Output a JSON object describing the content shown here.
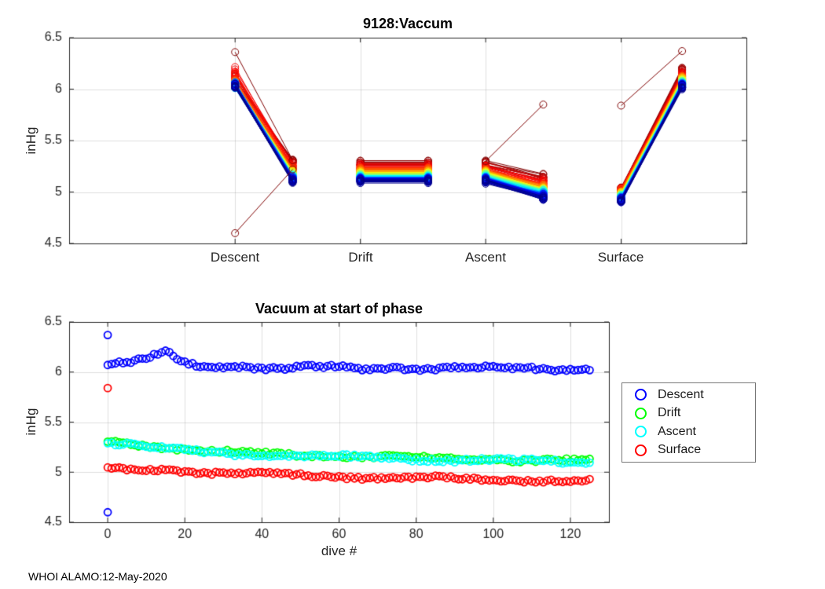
{
  "figure": {
    "footer": "WHOI ALAMO:12-May-2020",
    "background": "#ffffff"
  },
  "chart_data": [
    {
      "type": "line",
      "title": "9128:Vaccum",
      "ylabel": "inHg",
      "ylim": [
        4.5,
        6.5
      ],
      "yticks": [
        4.5,
        5,
        5.5,
        6,
        6.5
      ],
      "grid": true,
      "categories": [
        "Descent",
        "Drift",
        "Ascent",
        "Surface"
      ],
      "x_pair_fractions": [
        [
          0.245,
          0.33
        ],
        [
          0.43,
          0.53
        ],
        [
          0.615,
          0.7
        ],
        [
          0.815,
          0.905
        ]
      ],
      "n_dives": 126,
      "marker": "o",
      "colormap": "jet reversed by dive number (early dives dark red, late dives dark blue)",
      "sample_dives": [
        0,
        5,
        10,
        15,
        20,
        25,
        30,
        35,
        40,
        45,
        50,
        55,
        60,
        65,
        70,
        75,
        80,
        85,
        90,
        95,
        100,
        105,
        110,
        115,
        120,
        125
      ],
      "phase_series": {
        "descent_start": [
          6.08,
          6.09,
          6.13,
          6.2,
          6.09,
          6.06,
          6.05,
          6.06,
          6.04,
          6.03,
          6.05,
          6.04,
          6.05,
          6.03,
          6.04,
          6.05,
          6.04,
          6.03,
          6.05,
          6.04,
          6.05,
          6.03,
          6.04,
          6.03,
          6.04,
          6.03
        ],
        "descent_end": [
          5.31,
          5.29,
          5.27,
          5.25,
          5.23,
          5.21,
          5.2,
          5.19,
          5.18,
          5.18,
          5.17,
          5.17,
          5.16,
          5.16,
          5.15,
          5.15,
          5.14,
          5.14,
          5.13,
          5.13,
          5.13,
          5.12,
          5.12,
          5.12,
          5.11,
          5.11
        ],
        "drift_start": [
          5.3,
          5.28,
          5.26,
          5.24,
          5.22,
          5.21,
          5.2,
          5.19,
          5.18,
          5.17,
          5.17,
          5.16,
          5.16,
          5.15,
          5.15,
          5.14,
          5.14,
          5.13,
          5.13,
          5.13,
          5.12,
          5.12,
          5.12,
          5.11,
          5.11,
          5.1
        ],
        "drift_end": [
          5.3,
          5.28,
          5.26,
          5.24,
          5.22,
          5.21,
          5.2,
          5.19,
          5.18,
          5.17,
          5.17,
          5.16,
          5.16,
          5.15,
          5.15,
          5.14,
          5.14,
          5.13,
          5.13,
          5.13,
          5.12,
          5.12,
          5.12,
          5.11,
          5.11,
          5.1
        ],
        "ascent_start": [
          5.3,
          5.28,
          5.26,
          5.24,
          5.22,
          5.21,
          5.2,
          5.19,
          5.18,
          5.17,
          5.17,
          5.16,
          5.16,
          5.15,
          5.15,
          5.14,
          5.14,
          5.13,
          5.13,
          5.13,
          5.12,
          5.12,
          5.12,
          5.11,
          5.11,
          5.1
        ],
        "ascent_end": [
          5.16,
          5.13,
          5.11,
          5.09,
          5.08,
          5.06,
          5.05,
          5.04,
          5.03,
          5.03,
          5.02,
          5.01,
          5.01,
          5.0,
          5.0,
          4.99,
          4.99,
          4.98,
          4.98,
          4.97,
          4.97,
          4.96,
          4.96,
          4.95,
          4.94,
          4.94
        ],
        "surface_start": [
          5.03,
          5.02,
          5.02,
          5.04,
          5.01,
          5.0,
          4.99,
          4.98,
          4.98,
          4.97,
          4.97,
          4.96,
          4.96,
          4.95,
          4.95,
          4.95,
          4.94,
          4.94,
          4.93,
          4.93,
          4.93,
          4.92,
          4.92,
          4.92,
          4.91,
          4.91
        ],
        "surface_end": [
          6.2,
          6.18,
          6.16,
          6.14,
          6.12,
          6.11,
          6.1,
          6.09,
          6.09,
          6.08,
          6.08,
          6.07,
          6.07,
          6.06,
          6.06,
          6.05,
          6.05,
          6.05,
          6.04,
          6.04,
          6.04,
          6.03,
          6.03,
          6.03,
          6.02,
          6.02
        ]
      },
      "outlier_segments": [
        {
          "phase": "Descent",
          "dive": 0,
          "from": 4.6,
          "to": 5.22
        },
        {
          "phase": "Ascent",
          "dive": 0,
          "from": 5.3,
          "to": 5.85
        },
        {
          "phase": "Surface",
          "dive": 0,
          "from": 5.84,
          "to": 6.37
        },
        {
          "phase": "Descent",
          "dive": 1,
          "from": 6.36,
          "to": 5.31
        }
      ]
    },
    {
      "type": "scatter",
      "title": "Vacuum at start of phase",
      "xlabel": "dive #",
      "ylabel": "inHg",
      "xlim": [
        -10,
        130
      ],
      "ylim": [
        4.5,
        6.5
      ],
      "xticks": [
        0,
        20,
        40,
        60,
        80,
        100,
        120
      ],
      "yticks": [
        4.5,
        5,
        5.5,
        6,
        6.5
      ],
      "grid": true,
      "marker": "o",
      "x_samples": [
        0,
        5,
        10,
        15,
        20,
        25,
        30,
        35,
        40,
        45,
        50,
        55,
        60,
        65,
        70,
        75,
        80,
        85,
        90,
        95,
        100,
        105,
        110,
        115,
        120,
        125
      ],
      "series": [
        {
          "name": "Descent",
          "color": "#0000ff",
          "values": [
            6.08,
            6.09,
            6.13,
            6.2,
            6.09,
            6.06,
            6.05,
            6.06,
            6.04,
            6.03,
            6.05,
            6.04,
            6.05,
            6.03,
            6.04,
            6.05,
            6.04,
            6.03,
            6.05,
            6.04,
            6.05,
            6.03,
            6.04,
            6.03,
            6.04,
            6.03
          ]
        },
        {
          "name": "Drift",
          "color": "#00ff00",
          "values": [
            5.31,
            5.29,
            5.27,
            5.25,
            5.23,
            5.21,
            5.2,
            5.19,
            5.18,
            5.18,
            5.17,
            5.17,
            5.16,
            5.16,
            5.15,
            5.15,
            5.14,
            5.14,
            5.13,
            5.13,
            5.13,
            5.12,
            5.12,
            5.12,
            5.11,
            5.11
          ]
        },
        {
          "name": "Ascent",
          "color": "#00ffff",
          "values": [
            5.3,
            5.28,
            5.26,
            5.23,
            5.22,
            5.2,
            5.19,
            5.18,
            5.17,
            5.17,
            5.16,
            5.16,
            5.15,
            5.15,
            5.14,
            5.14,
            5.13,
            5.13,
            5.12,
            5.12,
            5.12,
            5.11,
            5.11,
            5.11,
            5.1,
            5.1
          ]
        },
        {
          "name": "Surface",
          "color": "#ff0000",
          "values": [
            5.03,
            5.02,
            5.02,
            5.04,
            5.01,
            5.0,
            4.99,
            4.98,
            4.98,
            4.97,
            4.97,
            4.96,
            4.96,
            4.95,
            4.95,
            4.95,
            4.94,
            4.94,
            4.93,
            4.93,
            4.93,
            4.92,
            4.92,
            4.92,
            4.91,
            4.91
          ]
        }
      ],
      "extra_points": [
        {
          "series": "Descent",
          "x": 0,
          "y": 6.37
        },
        {
          "series": "Descent",
          "x": 0,
          "y": 4.6
        },
        {
          "series": "Surface",
          "x": 0,
          "y": 5.84
        }
      ],
      "legend": {
        "position": "right-outside",
        "labels": [
          "Descent",
          "Drift",
          "Ascent",
          "Surface"
        ]
      }
    }
  ]
}
